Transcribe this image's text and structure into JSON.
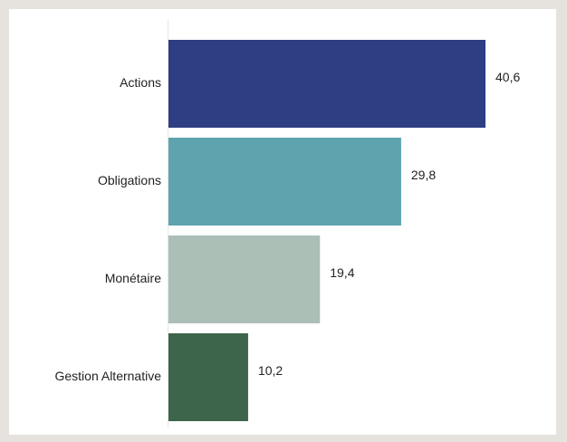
{
  "chart_data": {
    "type": "bar",
    "orientation": "horizontal",
    "categories": [
      "Actions",
      "Obligations",
      "Monétaire",
      "Gestion Alternative"
    ],
    "values": [
      40.6,
      29.8,
      19.4,
      10.2
    ],
    "value_labels": [
      "40,6",
      "29,8",
      "19,4",
      "10,2"
    ],
    "colors": [
      "#2e3e82",
      "#5ea3ae",
      "#abbfb6",
      "#3d654b"
    ],
    "title": "",
    "xlabel": "",
    "ylabel": "",
    "xlim": [
      0,
      40.6
    ],
    "grid": false,
    "legend": "none"
  }
}
